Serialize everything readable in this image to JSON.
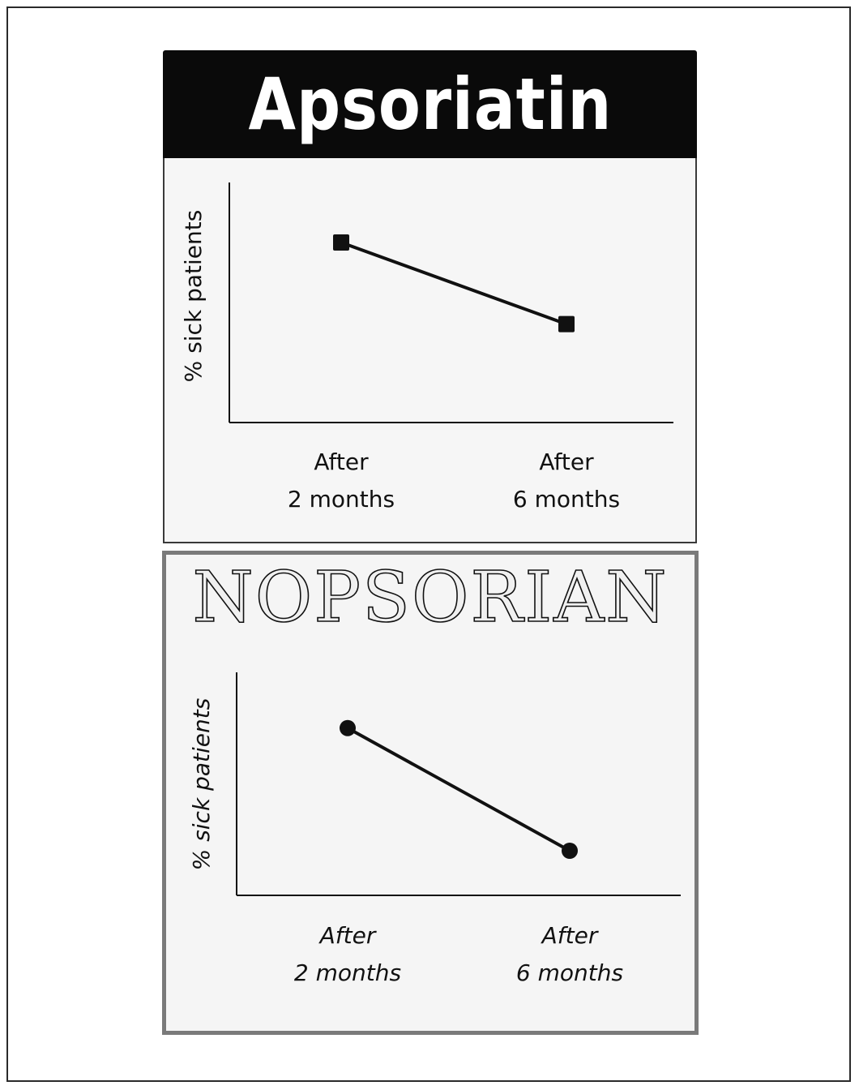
{
  "chart_data": [
    {
      "type": "line",
      "title": "Apsoriatin",
      "ylabel": "% sick patients",
      "xlabel": "",
      "categories": [
        [
          "After",
          "2 months"
        ],
        [
          "After",
          "6 months"
        ]
      ],
      "series": [
        {
          "values": [
            75,
            41
          ],
          "marker": "square"
        }
      ],
      "ylim": [
        0,
        100
      ],
      "grid": false,
      "colors": {
        "line": "#111111",
        "title_bg": "#0a0a0a",
        "title_fg": "#ffffff"
      }
    },
    {
      "type": "line",
      "title": "NOPSORIAN",
      "ylabel": "% sick patients",
      "xlabel": "",
      "categories": [
        [
          "After",
          "2 months"
        ],
        [
          "After",
          "6 months"
        ]
      ],
      "series": [
        {
          "values": [
            75,
            20
          ],
          "marker": "circle"
        }
      ],
      "ylim": [
        0,
        100
      ],
      "grid": false,
      "colors": {
        "line": "#111111",
        "frame": "#7a7a7a"
      }
    }
  ]
}
